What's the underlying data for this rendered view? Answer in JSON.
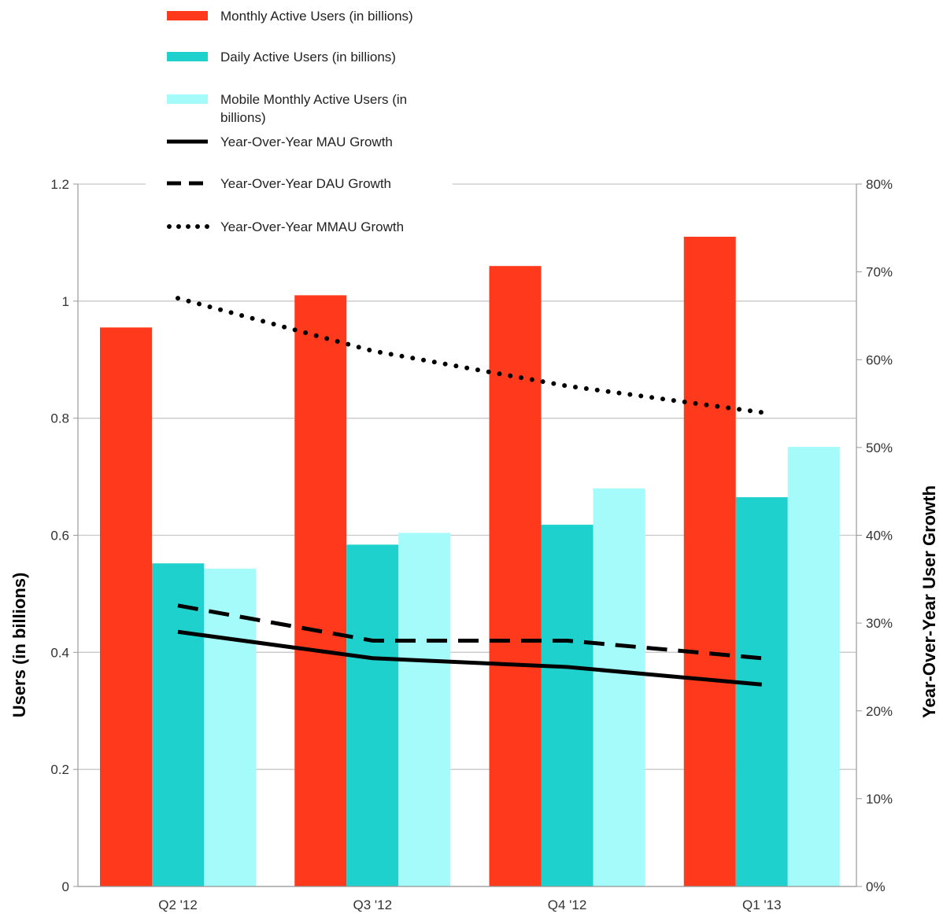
{
  "chart_data": {
    "type": "bar",
    "categories": [
      "Q2 '12",
      "Q3 '12",
      "Q4 '12",
      "Q1 '13"
    ],
    "series": [
      {
        "name": "Monthly Active Users (in billions)",
        "type": "bar",
        "axis": "left",
        "color": "#FF3A1C",
        "values": [
          0.955,
          1.01,
          1.06,
          1.11
        ]
      },
      {
        "name": "Daily Active Users (in billions)",
        "type": "bar",
        "axis": "left",
        "color": "#1FD1CC",
        "values": [
          0.552,
          0.584,
          0.618,
          0.665
        ]
      },
      {
        "name": "Mobile Monthly Active Users (in billions)",
        "type": "bar",
        "axis": "left",
        "color": "#A5FAFA",
        "values": [
          0.543,
          0.604,
          0.68,
          0.751
        ]
      },
      {
        "name": "Year-Over-Year MAU Growth",
        "type": "line",
        "axis": "right",
        "color": "#000000",
        "dash": "solid",
        "values": [
          29,
          26,
          25,
          23
        ]
      },
      {
        "name": "Year-Over-Year DAU Growth",
        "type": "line",
        "axis": "right",
        "color": "#000000",
        "dash": "dashed",
        "values": [
          32,
          28,
          28,
          26
        ]
      },
      {
        "name": "Year-Over-Year MMAU Growth",
        "type": "line",
        "axis": "right",
        "color": "#000000",
        "dash": "dotted",
        "values": [
          67,
          61,
          57,
          54
        ]
      }
    ],
    "ylabel": "Users (in billions)",
    "y2label": "Year-Over-Year User Growth",
    "ylim": [
      0,
      1.2
    ],
    "y2lim": [
      0,
      80
    ],
    "yticks": [
      "0",
      "0.2",
      "0.4",
      "0.6",
      "0.8",
      "1",
      "1.2"
    ],
    "y2ticks": [
      "0%",
      "10%",
      "20%",
      "30%",
      "40%",
      "50%",
      "60%",
      "70%",
      "80%"
    ],
    "grid": true,
    "legend_position": "top-left"
  }
}
